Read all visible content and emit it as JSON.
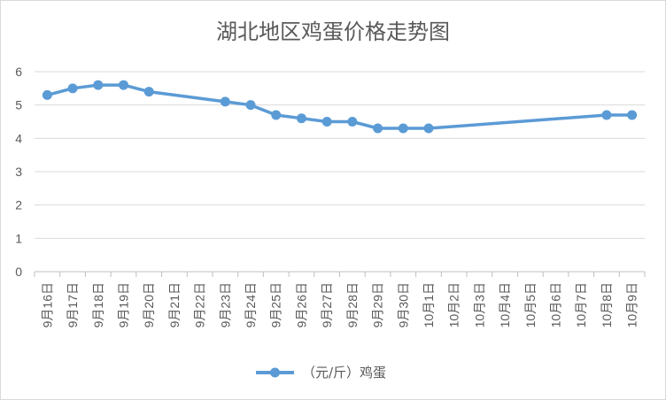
{
  "chart_data": {
    "type": "line",
    "title": "湖北地区鸡蛋价格走势图",
    "xlabel": "",
    "ylabel": "",
    "ylim": [
      0,
      6
    ],
    "yticks": [
      0,
      1,
      2,
      3,
      4,
      5,
      6
    ],
    "grid": true,
    "legend": "bottom",
    "categories": [
      "9月16日",
      "9月17日",
      "9月18日",
      "9月19日",
      "9月20日",
      "9月21日",
      "9月22日",
      "9月23日",
      "9月24日",
      "9月25日",
      "9月26日",
      "9月27日",
      "9月28日",
      "9月29日",
      "9月30日",
      "10月1日",
      "10月2日",
      "10月3日",
      "10月4日",
      "10月5日",
      "10月6日",
      "10月7日",
      "10月8日",
      "10月9日"
    ],
    "series": [
      {
        "name": "（元/斤）鸡蛋",
        "color": "#5b9bd5",
        "values": [
          5.3,
          5.5,
          5.6,
          5.6,
          5.4,
          null,
          null,
          5.1,
          5.0,
          4.7,
          4.6,
          4.5,
          4.5,
          4.3,
          4.3,
          4.3,
          null,
          null,
          null,
          null,
          null,
          null,
          4.7,
          4.7
        ]
      }
    ]
  }
}
